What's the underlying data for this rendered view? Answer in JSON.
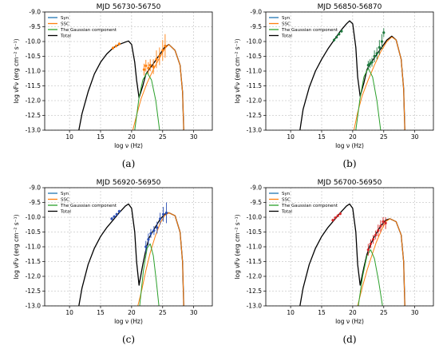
{
  "chart_data": [
    {
      "type": "line",
      "title": "MJD 56730-56750",
      "caption": "(a)",
      "xlabel": "log ν (Hz)",
      "ylabel": "log νFν (erg cm⁻² s⁻¹)",
      "xlim": [
        6,
        33
      ],
      "ylim": [
        -13.0,
        -9.0
      ],
      "xticks": [
        "10",
        "15",
        "20",
        "25",
        "30"
      ],
      "yticks": [
        "-13.0",
        "-12.5",
        "-12.0",
        "-11.5",
        "-11.0",
        "-10.5",
        "-10.0",
        "-9.5",
        "-9.0"
      ],
      "grid": true,
      "legend_position": "top-left",
      "legend": [
        "Syn",
        "SSC",
        "The Gaussian component",
        "Total"
      ],
      "colors": {
        "syn": "#1f77b4",
        "ssc": "#ff7f0e",
        "gauss": "#2ca02c",
        "total": "#000000",
        "data": "#ff7f0e"
      },
      "series": [
        {
          "name": "Total",
          "x": [
            11.5,
            12.0,
            13.0,
            14.0,
            15.0,
            16.0,
            17.0,
            18.0,
            19.0,
            19.5,
            20.0,
            20.5,
            20.8,
            21.2,
            21.8,
            22.3,
            22.8,
            23.5,
            24.5,
            25.3,
            26.0,
            27.0,
            27.8,
            28.2,
            28.4
          ],
          "y": [
            -13.0,
            -12.45,
            -11.7,
            -11.1,
            -10.7,
            -10.42,
            -10.22,
            -10.1,
            -10.02,
            -9.98,
            -10.1,
            -10.7,
            -11.3,
            -11.9,
            -11.5,
            -11.1,
            -10.95,
            -10.75,
            -10.45,
            -10.2,
            -10.1,
            -10.3,
            -10.8,
            -11.7,
            -13.0
          ]
        },
        {
          "name": "SSC",
          "x": [
            20.2,
            20.8,
            21.5,
            22.5,
            23.5,
            24.5,
            25.3,
            26.0,
            27.0,
            27.8,
            28.2,
            28.4
          ],
          "y": [
            -13.0,
            -12.5,
            -11.95,
            -11.4,
            -10.95,
            -10.55,
            -10.25,
            -10.1,
            -10.3,
            -10.8,
            -11.7,
            -13.0
          ]
        },
        {
          "name": "The Gaussian component",
          "x": [
            20.5,
            21.2,
            21.8,
            22.5,
            23.2,
            23.9,
            24.5
          ],
          "y": [
            -13.0,
            -11.9,
            -11.3,
            -11.05,
            -11.3,
            -12.0,
            -13.0
          ]
        }
      ],
      "data_points": {
        "color": "#ff7f0e",
        "x": [
          17.0,
          17.5,
          18.0,
          22.0,
          22.3,
          22.7,
          23.0,
          23.5,
          24.0,
          24.5,
          25.0,
          25.4
        ],
        "y": [
          -10.22,
          -10.15,
          -10.08,
          -10.95,
          -10.82,
          -10.9,
          -10.8,
          -10.85,
          -10.6,
          -10.5,
          -10.3,
          -10.15
        ],
        "err": [
          0.05,
          0.05,
          0.05,
          0.2,
          0.2,
          0.2,
          0.2,
          0.25,
          0.3,
          0.3,
          0.35,
          0.4
        ]
      }
    },
    {
      "type": "line",
      "title": "MJD 56850-56870",
      "caption": "(b)",
      "xlabel": "log ν (Hz)",
      "ylabel": "log νFν (erg cm⁻² s⁻¹)",
      "xlim": [
        6,
        33
      ],
      "ylim": [
        -13.0,
        -9.0
      ],
      "xticks": [
        "10",
        "15",
        "20",
        "25",
        "30"
      ],
      "yticks": [
        "-13.0",
        "-12.5",
        "-12.0",
        "-11.5",
        "-11.0",
        "-10.5",
        "-10.0",
        "-9.5",
        "-9.0"
      ],
      "grid": true,
      "legend_position": "top-left",
      "legend": [
        "Syn",
        "SSC",
        "The Gaussian component",
        "Total"
      ],
      "colors": {
        "syn": "#1f77b4",
        "ssc": "#ff7f0e",
        "gauss": "#2ca02c",
        "total": "#000000",
        "data": "#1e7a3e"
      },
      "series": [
        {
          "name": "Total",
          "x": [
            11.5,
            12.0,
            13.0,
            14.0,
            15.0,
            16.0,
            17.0,
            18.0,
            19.0,
            19.5,
            20.0,
            20.5,
            20.8,
            21.2,
            21.8,
            22.3,
            22.8,
            23.5,
            24.5,
            25.5,
            26.3,
            27.0,
            27.8,
            28.2,
            28.4
          ],
          "y": [
            -13.0,
            -12.3,
            -11.55,
            -11.0,
            -10.6,
            -10.25,
            -9.95,
            -9.65,
            -9.4,
            -9.3,
            -9.4,
            -10.2,
            -11.2,
            -11.85,
            -11.4,
            -10.95,
            -10.75,
            -10.55,
            -10.25,
            -9.95,
            -9.82,
            -9.95,
            -10.6,
            -11.6,
            -13.0
          ]
        },
        {
          "name": "SSC",
          "x": [
            20.2,
            20.8,
            21.5,
            22.5,
            23.5,
            24.5,
            25.5,
            26.3,
            27.0,
            27.8,
            28.2,
            28.4
          ],
          "y": [
            -13.0,
            -12.4,
            -11.85,
            -11.3,
            -10.8,
            -10.35,
            -10.0,
            -9.85,
            -9.95,
            -10.6,
            -11.6,
            -13.0
          ]
        },
        {
          "name": "The Gaussian component",
          "x": [
            20.5,
            21.2,
            21.8,
            22.5,
            23.2,
            23.9,
            24.5
          ],
          "y": [
            -13.0,
            -11.9,
            -11.2,
            -10.9,
            -11.2,
            -12.0,
            -13.0
          ]
        }
      ],
      "data_points": {
        "color": "#1e7a3e",
        "x": [
          17.0,
          17.4,
          17.8,
          18.2,
          22.5,
          22.8,
          23.1,
          23.5,
          23.9,
          24.3,
          24.7,
          25.0
        ],
        "y": [
          -9.95,
          -9.85,
          -9.75,
          -9.65,
          -10.8,
          -10.75,
          -10.7,
          -10.5,
          -10.4,
          -10.2,
          -10.0,
          -9.7
        ],
        "err": [
          0.05,
          0.05,
          0.05,
          0.05,
          0.15,
          0.15,
          0.15,
          0.2,
          0.2,
          0.25,
          0.25,
          0.15
        ]
      }
    },
    {
      "type": "line",
      "title": "MJD 56920-56950",
      "caption": "(c)",
      "xlabel": "log ν (Hz)",
      "ylabel": "log νFν (erg cm⁻² s⁻¹)",
      "xlim": [
        6,
        33
      ],
      "ylim": [
        -13.0,
        -9.0
      ],
      "xticks": [
        "10",
        "15",
        "20",
        "25",
        "30"
      ],
      "yticks": [
        "-13.0",
        "-12.5",
        "-12.0",
        "-11.5",
        "-11.0",
        "-10.5",
        "-10.0",
        "-9.5",
        "-9.0"
      ],
      "grid": true,
      "legend_position": "top-left",
      "legend": [
        "Syn",
        "SSC",
        "The Gaussian component",
        "Total"
      ],
      "colors": {
        "syn": "#1f77b4",
        "ssc": "#ff7f0e",
        "gauss": "#2ca02c",
        "total": "#000000",
        "data": "#2b4fb5"
      },
      "series": [
        {
          "name": "Total",
          "x": [
            11.5,
            12.0,
            13.0,
            14.0,
            15.0,
            16.0,
            17.0,
            18.0,
            19.0,
            19.5,
            20.0,
            20.5,
            20.8,
            21.2,
            21.8,
            22.3,
            22.8,
            23.5,
            24.5,
            25.3,
            26.0,
            27.0,
            27.8,
            28.2,
            28.4
          ],
          "y": [
            -13.0,
            -12.4,
            -11.6,
            -11.05,
            -10.65,
            -10.35,
            -10.1,
            -9.85,
            -9.62,
            -9.55,
            -9.7,
            -10.5,
            -11.5,
            -12.3,
            -11.6,
            -11.1,
            -10.7,
            -10.45,
            -10.1,
            -9.9,
            -9.85,
            -9.95,
            -10.5,
            -11.5,
            -13.0
          ]
        },
        {
          "name": "SSC",
          "x": [
            21.0,
            21.6,
            22.3,
            23.0,
            23.8,
            24.6,
            25.3,
            26.0,
            27.0,
            27.8,
            28.2,
            28.4
          ],
          "y": [
            -13.0,
            -12.5,
            -11.8,
            -11.2,
            -10.65,
            -10.2,
            -9.95,
            -9.85,
            -9.95,
            -10.5,
            -11.5,
            -13.0
          ]
        },
        {
          "name": "The Gaussian component",
          "x": [
            21.3,
            21.9,
            22.5,
            23.0,
            23.5,
            24.0,
            24.4
          ],
          "y": [
            -13.0,
            -11.8,
            -11.05,
            -10.9,
            -11.3,
            -12.2,
            -13.0
          ]
        }
      ],
      "data_points": {
        "color": "#2b4fb5",
        "x": [
          16.8,
          17.2,
          17.6,
          18.0,
          22.3,
          22.7,
          23.1,
          23.6,
          24.1,
          24.6,
          25.1,
          25.6
        ],
        "y": [
          -10.05,
          -9.98,
          -9.9,
          -9.8,
          -11.0,
          -10.75,
          -10.55,
          -10.45,
          -10.35,
          -10.05,
          -9.9,
          -9.85
        ],
        "err": [
          0.05,
          0.05,
          0.05,
          0.05,
          0.2,
          0.2,
          0.15,
          0.15,
          0.2,
          0.2,
          0.25,
          0.35
        ]
      }
    },
    {
      "type": "line",
      "title": "MJD 56700-56950",
      "caption": "(d)",
      "xlabel": "log ν (Hz)",
      "ylabel": "log νFν (erg cm⁻² s⁻¹)",
      "xlim": [
        6,
        33
      ],
      "ylim": [
        -13.0,
        -9.0
      ],
      "xticks": [
        "10",
        "15",
        "20",
        "25",
        "30"
      ],
      "yticks": [
        "-13.0",
        "-12.5",
        "-12.0",
        "-11.5",
        "-11.0",
        "-10.5",
        "-10.0",
        "-9.5",
        "-9.0"
      ],
      "grid": true,
      "legend_position": "top-left",
      "legend": [
        "Syn",
        "SSC",
        "The Gaussian component",
        "Total"
      ],
      "colors": {
        "syn": "#1f77b4",
        "ssc": "#ff7f0e",
        "gauss": "#2ca02c",
        "total": "#000000",
        "data": "#d62728"
      },
      "series": [
        {
          "name": "Total",
          "x": [
            11.5,
            12.0,
            13.0,
            14.0,
            15.0,
            16.0,
            17.0,
            18.0,
            19.0,
            19.5,
            20.0,
            20.5,
            20.8,
            21.2,
            21.8,
            22.3,
            22.8,
            23.5,
            24.5,
            25.3,
            26.0,
            27.0,
            27.8,
            28.2,
            28.4
          ],
          "y": [
            -13.0,
            -12.4,
            -11.6,
            -11.05,
            -10.65,
            -10.35,
            -10.1,
            -9.85,
            -9.62,
            -9.55,
            -9.7,
            -10.5,
            -11.6,
            -12.3,
            -11.7,
            -11.25,
            -10.95,
            -10.65,
            -10.3,
            -10.1,
            -10.05,
            -10.15,
            -10.6,
            -11.5,
            -13.0
          ]
        },
        {
          "name": "SSC",
          "x": [
            20.8,
            21.5,
            22.3,
            23.0,
            23.8,
            24.6,
            25.3,
            26.0,
            27.0,
            27.8,
            28.2,
            28.4
          ],
          "y": [
            -13.0,
            -12.4,
            -11.8,
            -11.35,
            -10.85,
            -10.45,
            -10.15,
            -10.05,
            -10.15,
            -10.6,
            -11.5,
            -13.0
          ]
        },
        {
          "name": "The Gaussian component",
          "x": [
            20.9,
            21.6,
            22.3,
            22.9,
            23.5,
            24.2,
            24.8
          ],
          "y": [
            -13.0,
            -12.0,
            -11.3,
            -11.1,
            -11.4,
            -12.2,
            -13.0
          ]
        }
      ],
      "data_points": {
        "color": "#d62728",
        "x": [
          16.8,
          17.2,
          17.6,
          18.0,
          22.5,
          22.9,
          23.3,
          23.7,
          24.1,
          24.5,
          24.9,
          25.3
        ],
        "y": [
          -10.1,
          -10.02,
          -9.95,
          -9.88,
          -11.1,
          -10.9,
          -10.75,
          -10.6,
          -10.45,
          -10.3,
          -10.15,
          -10.2
        ],
        "err": [
          0.05,
          0.05,
          0.05,
          0.05,
          0.2,
          0.15,
          0.15,
          0.15,
          0.2,
          0.2,
          0.15,
          0.2
        ]
      }
    }
  ]
}
